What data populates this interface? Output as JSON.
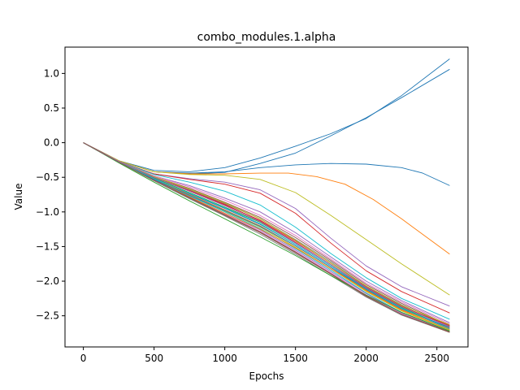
{
  "chart_data": {
    "type": "line",
    "title": "combo_modules.1.alpha",
    "xlabel": "Epochs",
    "ylabel": "Value",
    "xlim": [
      -130,
      2720
    ],
    "ylim": [
      -2.95,
      1.38
    ],
    "xticks": [
      0,
      500,
      1000,
      1500,
      2000,
      2500
    ],
    "yticks": [
      1.0,
      0.5,
      0.0,
      -0.5,
      -1.0,
      -1.5,
      -2.0,
      -2.5
    ],
    "ytick_labels": [
      "1.0",
      "0.5",
      "0.0",
      "−0.5",
      "−1.0",
      "−1.5",
      "−2.0",
      "−2.5"
    ],
    "grid": false,
    "legend": "none",
    "colors": [
      "#1f77b4",
      "#ff7f0e",
      "#2ca02c",
      "#d62728",
      "#9467bd",
      "#8c564b",
      "#e377c2",
      "#7f7f7f",
      "#bcbd22",
      "#17becf"
    ],
    "series": [
      {
        "color": "#1f77b4",
        "x": [
          0,
          250,
          500,
          750,
          1000,
          1250,
          1500,
          1750,
          2000,
          2250,
          2590
        ],
        "y": [
          0,
          -0.26,
          -0.4,
          -0.42,
          -0.36,
          -0.22,
          -0.05,
          0.13,
          0.35,
          0.68,
          1.21
        ]
      },
      {
        "color": "#1f77b4",
        "x": [
          0,
          250,
          500,
          750,
          1000,
          1250,
          1500,
          1750,
          2000,
          2250,
          2590
        ],
        "y": [
          0,
          -0.26,
          -0.42,
          -0.45,
          -0.43,
          -0.3,
          -0.15,
          0.1,
          0.36,
          0.65,
          1.06
        ]
      },
      {
        "color": "#1f77b4",
        "x": [
          0,
          250,
          500,
          750,
          1000,
          1250,
          1500,
          1750,
          2000,
          2250,
          2400,
          2590
        ],
        "y": [
          0,
          -0.26,
          -0.42,
          -0.44,
          -0.42,
          -0.36,
          -0.32,
          -0.3,
          -0.31,
          -0.36,
          -0.44,
          -0.62
        ]
      },
      {
        "color": "#ff7f0e",
        "x": [
          0,
          250,
          500,
          750,
          1000,
          1250,
          1450,
          1650,
          1850,
          2050,
          2250,
          2590
        ],
        "y": [
          0,
          -0.26,
          -0.42,
          -0.45,
          -0.45,
          -0.44,
          -0.44,
          -0.49,
          -0.6,
          -0.82,
          -1.1,
          -1.61
        ]
      },
      {
        "color": "#bcbd22",
        "x": [
          0,
          250,
          500,
          750,
          1000,
          1250,
          1500,
          1750,
          2000,
          2250,
          2590
        ],
        "y": [
          0,
          -0.26,
          -0.42,
          -0.46,
          -0.47,
          -0.53,
          -0.72,
          -1.05,
          -1.4,
          -1.75,
          -2.2
        ]
      },
      {
        "color": "#9467bd",
        "x": [
          0,
          250,
          500,
          750,
          1000,
          1250,
          1500,
          1750,
          2000,
          2250,
          2590
        ],
        "y": [
          0,
          -0.27,
          -0.45,
          -0.52,
          -0.57,
          -0.68,
          -0.95,
          -1.38,
          -1.78,
          -2.08,
          -2.36
        ]
      },
      {
        "color": "#d62728",
        "x": [
          0,
          250,
          500,
          750,
          1000,
          1250,
          1500,
          1750,
          2000,
          2250,
          2590
        ],
        "y": [
          0,
          -0.27,
          -0.45,
          -0.53,
          -0.6,
          -0.73,
          -1.02,
          -1.45,
          -1.85,
          -2.15,
          -2.46
        ]
      },
      {
        "color": "#17becf",
        "x": [
          0,
          250,
          500,
          750,
          1000,
          1250,
          1500,
          1750,
          2000,
          2250,
          2590
        ],
        "y": [
          0,
          -0.27,
          -0.46,
          -0.57,
          -0.7,
          -0.9,
          -1.22,
          -1.6,
          -1.95,
          -2.25,
          -2.55
        ]
      },
      {
        "color": "#9467bd",
        "x": [
          0,
          250,
          500,
          750,
          1000,
          1250,
          1500,
          1750,
          2000,
          2250,
          2590
        ],
        "y": [
          0,
          -0.27,
          -0.48,
          -0.62,
          -0.8,
          -1.0,
          -1.3,
          -1.65,
          -2.0,
          -2.28,
          -2.6
        ]
      },
      {
        "color": "#e377c2",
        "x": [
          0,
          250,
          500,
          750,
          1000,
          1250,
          1500,
          1750,
          2000,
          2250,
          2590
        ],
        "y": [
          0,
          -0.27,
          -0.48,
          -0.64,
          -0.83,
          -1.05,
          -1.34,
          -1.68,
          -2.03,
          -2.3,
          -2.62
        ]
      },
      {
        "color": "#8c564b",
        "x": [
          0,
          250,
          500,
          750,
          1000,
          1250,
          1500,
          1750,
          2000,
          2250,
          2590
        ],
        "y": [
          0,
          -0.27,
          -0.49,
          -0.66,
          -0.86,
          -1.08,
          -1.37,
          -1.7,
          -2.05,
          -2.32,
          -2.64
        ]
      },
      {
        "color": "#7f7f7f",
        "x": [
          0,
          250,
          500,
          750,
          1000,
          1250,
          1500,
          1750,
          2000,
          2250,
          2590
        ],
        "y": [
          0,
          -0.27,
          -0.5,
          -0.68,
          -0.88,
          -1.1,
          -1.4,
          -1.72,
          -2.07,
          -2.34,
          -2.65
        ]
      },
      {
        "color": "#d62728",
        "x": [
          0,
          250,
          500,
          750,
          1000,
          1250,
          1500,
          1750,
          2000,
          2250,
          2590
        ],
        "y": [
          0,
          -0.28,
          -0.5,
          -0.7,
          -0.9,
          -1.12,
          -1.42,
          -1.74,
          -2.08,
          -2.36,
          -2.66
        ]
      },
      {
        "color": "#2ca02c",
        "x": [
          0,
          250,
          500,
          750,
          1000,
          1250,
          1500,
          1750,
          2000,
          2250,
          2590
        ],
        "y": [
          0,
          -0.28,
          -0.51,
          -0.72,
          -0.93,
          -1.15,
          -1.45,
          -1.76,
          -2.1,
          -2.38,
          -2.68
        ]
      },
      {
        "color": "#1f77b4",
        "x": [
          0,
          250,
          500,
          750,
          1000,
          1250,
          1500,
          1750,
          2000,
          2250,
          2590
        ],
        "y": [
          0,
          -0.28,
          -0.52,
          -0.74,
          -0.95,
          -1.18,
          -1.47,
          -1.78,
          -2.12,
          -2.4,
          -2.69
        ]
      },
      {
        "color": "#ff7f0e",
        "x": [
          0,
          250,
          500,
          750,
          1000,
          1250,
          1500,
          1750,
          2000,
          2250,
          2590
        ],
        "y": [
          0,
          -0.28,
          -0.52,
          -0.75,
          -0.97,
          -1.2,
          -1.49,
          -1.8,
          -2.14,
          -2.42,
          -2.7
        ]
      },
      {
        "color": "#bcbd22",
        "x": [
          0,
          250,
          500,
          750,
          1000,
          1250,
          1500,
          1750,
          2000,
          2250,
          2590
        ],
        "y": [
          0,
          -0.28,
          -0.53,
          -0.76,
          -0.99,
          -1.22,
          -1.51,
          -1.82,
          -2.15,
          -2.43,
          -2.71
        ]
      },
      {
        "color": "#17becf",
        "x": [
          0,
          250,
          500,
          750,
          1000,
          1250,
          1500,
          1750,
          2000,
          2250,
          2590
        ],
        "y": [
          0,
          -0.28,
          -0.53,
          -0.77,
          -1.0,
          -1.24,
          -1.53,
          -1.84,
          -2.17,
          -2.45,
          -2.72
        ]
      },
      {
        "color": "#9467bd",
        "x": [
          0,
          250,
          500,
          750,
          1000,
          1250,
          1500,
          1750,
          2000,
          2250,
          2590
        ],
        "y": [
          0,
          -0.28,
          -0.54,
          -0.78,
          -1.02,
          -1.26,
          -1.55,
          -1.86,
          -2.18,
          -2.46,
          -2.72
        ]
      },
      {
        "color": "#e377c2",
        "x": [
          0,
          250,
          500,
          750,
          1000,
          1250,
          1500,
          1750,
          2000,
          2250,
          2590
        ],
        "y": [
          0,
          -0.28,
          -0.54,
          -0.79,
          -1.03,
          -1.28,
          -1.57,
          -1.88,
          -2.2,
          -2.47,
          -2.73
        ]
      },
      {
        "color": "#8c564b",
        "x": [
          0,
          250,
          500,
          750,
          1000,
          1250,
          1500,
          1750,
          2000,
          2250,
          2590
        ],
        "y": [
          0,
          -0.28,
          -0.55,
          -0.8,
          -1.05,
          -1.3,
          -1.59,
          -1.9,
          -2.22,
          -2.48,
          -2.73
        ]
      },
      {
        "color": "#7f7f7f",
        "x": [
          0,
          250,
          500,
          750,
          1000,
          1250,
          1500,
          1750,
          2000,
          2250,
          2590
        ],
        "y": [
          0,
          -0.28,
          -0.55,
          -0.81,
          -1.06,
          -1.32,
          -1.61,
          -1.92,
          -2.23,
          -2.49,
          -2.74
        ]
      },
      {
        "color": "#2ca02c",
        "x": [
          0,
          250,
          500,
          750,
          1000,
          1250,
          1500,
          1750,
          2000,
          2250,
          2590
        ],
        "y": [
          0,
          -0.29,
          -0.57,
          -0.84,
          -1.1,
          -1.36,
          -1.63,
          -1.92,
          -2.2,
          -2.45,
          -2.72
        ]
      },
      {
        "color": "#ff7f0e",
        "x": [
          0,
          250,
          500,
          750,
          1000,
          1250,
          1500,
          1750,
          2000,
          2250,
          2590
        ],
        "y": [
          0,
          -0.28,
          -0.54,
          -0.78,
          -1.02,
          -1.25,
          -1.52,
          -1.82,
          -2.13,
          -2.41,
          -2.68
        ]
      },
      {
        "color": "#1f77b4",
        "x": [
          0,
          250,
          500,
          750,
          1000,
          1250,
          1500,
          1750,
          2000,
          2250,
          2590
        ],
        "y": [
          0,
          -0.28,
          -0.53,
          -0.76,
          -0.98,
          -1.21,
          -1.49,
          -1.8,
          -2.12,
          -2.4,
          -2.67
        ]
      },
      {
        "color": "#d62728",
        "x": [
          0,
          250,
          500,
          750,
          1000,
          1250,
          1500,
          1750,
          2000,
          2250,
          2590
        ],
        "y": [
          0,
          -0.27,
          -0.5,
          -0.69,
          -0.89,
          -1.13,
          -1.44,
          -1.76,
          -2.1,
          -2.37,
          -2.64
        ]
      },
      {
        "color": "#bcbd22",
        "x": [
          0,
          250,
          500,
          750,
          1000,
          1250,
          1500,
          1750,
          2000,
          2250,
          2590
        ],
        "y": [
          0,
          -0.27,
          -0.49,
          -0.67,
          -0.87,
          -1.1,
          -1.41,
          -1.74,
          -2.07,
          -2.35,
          -2.63
        ]
      },
      {
        "color": "#17becf",
        "x": [
          0,
          250,
          500,
          750,
          1000,
          1250,
          1500,
          1750,
          2000,
          2250,
          2590
        ],
        "y": [
          0,
          -0.28,
          -0.52,
          -0.73,
          -0.94,
          -1.17,
          -1.47,
          -1.78,
          -2.11,
          -2.39,
          -2.69
        ]
      },
      {
        "color": "#9467bd",
        "x": [
          0,
          250,
          500,
          750,
          1000,
          1250,
          1500,
          1750,
          2000,
          2250,
          2590
        ],
        "y": [
          0,
          -0.27,
          -0.5,
          -0.7,
          -0.91,
          -1.14,
          -1.45,
          -1.76,
          -2.09,
          -2.37,
          -2.66
        ]
      },
      {
        "color": "#8c564b",
        "x": [
          0,
          250,
          500,
          750,
          1000,
          1250,
          1500,
          1750,
          2000,
          2250,
          2590
        ],
        "y": [
          0,
          -0.28,
          -0.54,
          -0.79,
          -1.04,
          -1.29,
          -1.58,
          -1.89,
          -2.21,
          -2.48,
          -2.74
        ]
      }
    ]
  }
}
